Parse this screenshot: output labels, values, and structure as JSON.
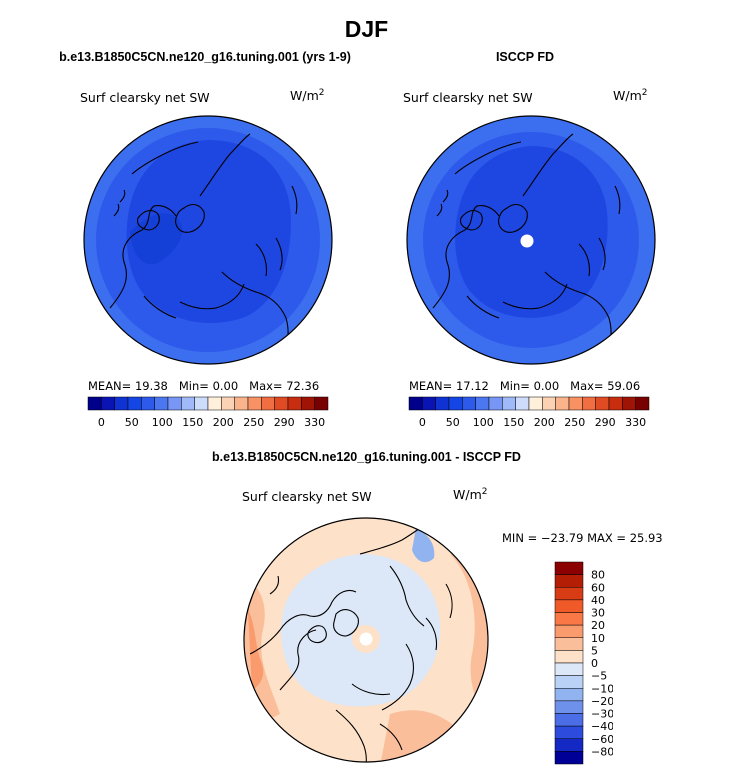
{
  "page_title": "DJF",
  "panels": [
    {
      "title": "b.e13.B1850C5CN.ne120_g16.tuning.001 (yrs 1-9)",
      "variable": "Surf clearsky net SW",
      "units": "W/m",
      "units_exp": "2",
      "stats": {
        "mean_label": "MEAN=",
        "mean": "19.38",
        "min_label": "Min=",
        "min": "0.00",
        "max_label": "Max=",
        "max": "72.36"
      }
    },
    {
      "title": "ISCCP FD",
      "variable": "Surf clearsky net SW",
      "units": "W/m",
      "units_exp": "2",
      "stats": {
        "mean_label": "MEAN=",
        "mean": "17.12",
        "min_label": "Min=",
        "min": "0.00",
        "max_label": "Max=",
        "max": "59.06"
      }
    }
  ],
  "diff_panel": {
    "title": "b.e13.B1850C5CN.ne120_g16.tuning.001 - ISCCP FD",
    "variable": "Surf clearsky net SW",
    "units": "W/m",
    "units_exp": "2",
    "minmax_text": "MIN = −23.79 MAX =  25.93"
  },
  "chart_data": [
    {
      "type": "heatmap",
      "projection": "north-polar-stereographic",
      "title": "b.e13.B1850C5CN.ne120_g16.tuning.001 (yrs 1-9)",
      "variable": "Surf clearsky net SW",
      "units": "W/m^2",
      "mean": 19.38,
      "min": 0.0,
      "max": 72.36,
      "colorbar": {
        "orientation": "horizontal",
        "tick_labels": [
          "0",
          "50",
          "100",
          "150",
          "200",
          "250",
          "290",
          "330"
        ],
        "colors": [
          "#00008b",
          "#0a14b4",
          "#0f32d2",
          "#1446e6",
          "#2d5aeb",
          "#4b78f0",
          "#7896f5",
          "#a0b9f8",
          "#cddcfa",
          "#fff0dc",
          "#fcd2b4",
          "#fab48c",
          "#f89164",
          "#f06e41",
          "#e14b23",
          "#c82d0f",
          "#a01405",
          "#780000"
        ]
      }
    },
    {
      "type": "heatmap",
      "projection": "north-polar-stereographic",
      "title": "ISCCP FD",
      "variable": "Surf clearsky net SW",
      "units": "W/m^2",
      "mean": 17.12,
      "min": 0.0,
      "max": 59.06,
      "colorbar": {
        "orientation": "horizontal",
        "tick_labels": [
          "0",
          "50",
          "100",
          "150",
          "200",
          "250",
          "290",
          "330"
        ],
        "colors": [
          "#00008b",
          "#0a14b4",
          "#0f32d2",
          "#1446e6",
          "#2d5aeb",
          "#4b78f0",
          "#7896f5",
          "#a0b9f8",
          "#cddcfa",
          "#fff0dc",
          "#fcd2b4",
          "#fab48c",
          "#f89164",
          "#f06e41",
          "#e14b23",
          "#c82d0f",
          "#a01405",
          "#780000"
        ]
      }
    },
    {
      "type": "heatmap",
      "projection": "north-polar-stereographic",
      "title": "b.e13.B1850C5CN.ne120_g16.tuning.001 - ISCCP FD",
      "variable": "Surf clearsky net SW",
      "units": "W/m^2",
      "min": -23.79,
      "max": 25.93,
      "colorbar": {
        "orientation": "vertical",
        "tick_labels": [
          "80",
          "60",
          "40",
          "30",
          "20",
          "10",
          "5",
          "0",
          "−5",
          "−10",
          "−20",
          "−30",
          "−40",
          "−60",
          "−80"
        ],
        "colors": [
          "#8b0000",
          "#b41e05",
          "#d73c14",
          "#f05a28",
          "#fa7846",
          "#fa9b6e",
          "#fabe9b",
          "#fde1c8",
          "#dce8f8",
          "#b9d2f5",
          "#91b4f0",
          "#6e91eb",
          "#4b6ee6",
          "#2d4bdc",
          "#1428c3",
          "#000096"
        ]
      }
    }
  ]
}
